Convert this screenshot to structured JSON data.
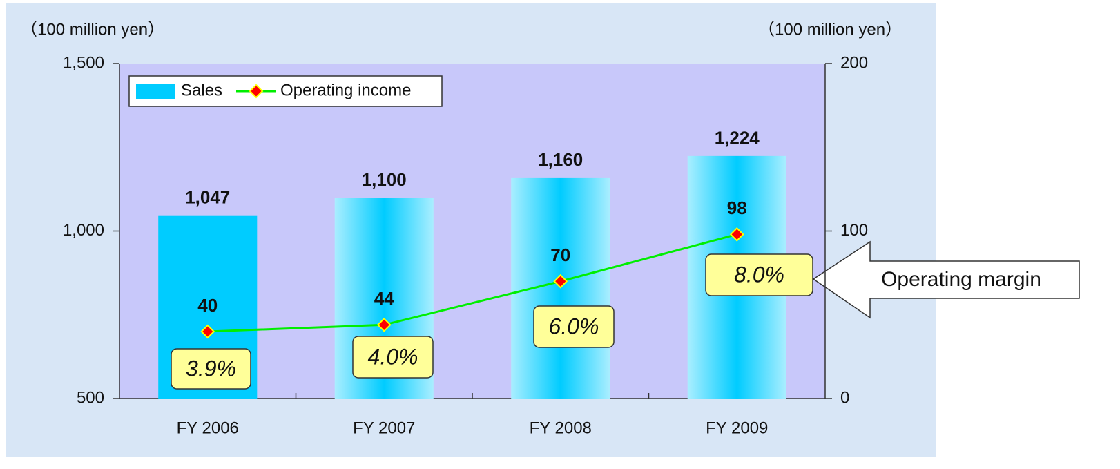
{
  "chart_data": {
    "type": "bar",
    "y_label": "（100 million yen）",
    "y2_label": "（100 million yen）",
    "categories": [
      "FY 2006",
      "FY 2007",
      "FY 2008",
      "FY 2009"
    ],
    "series": [
      {
        "name": "Sales",
        "type": "bar",
        "color": "#00ccff",
        "values": [
          1047,
          1100,
          1160,
          1224
        ],
        "value_labels": [
          "1,047",
          "1,100",
          "1,160",
          "1,224"
        ]
      },
      {
        "name": "Operating income",
        "type": "line",
        "axis": "y2",
        "color": "#00ee00",
        "marker_color": "#ff0000",
        "values": [
          40,
          44,
          70,
          98
        ]
      }
    ],
    "margin": {
      "name": "Operating margin",
      "values": [
        3.9,
        4.0,
        6.0,
        8.0
      ],
      "value_labels": [
        "3.9%",
        "4.0%",
        "6.0%",
        "8.0%"
      ]
    },
    "ylim": [
      500,
      1500
    ],
    "yticks": [
      500,
      {
        "value": 1000,
        "label": "1,000"
      },
      {
        "value": 1500,
        "label": "1,500"
      }
    ],
    "y2lim": [
      0,
      200
    ],
    "y2ticks": [
      0,
      100,
      200
    ],
    "legend": "upper left"
  }
}
